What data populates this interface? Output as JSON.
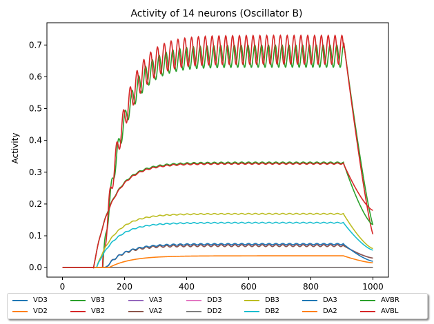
{
  "chart_data": {
    "type": "line",
    "title": "Activity of 14 neurons (Oscillator B)",
    "xlabel": "",
    "ylabel": "Activity",
    "xlim": [
      -50,
      1050
    ],
    "ylim": [
      -0.03,
      0.77
    ],
    "xticks": [
      0,
      200,
      400,
      600,
      800,
      1000
    ],
    "yticks": [
      0.0,
      0.1,
      0.2,
      0.3,
      0.4,
      0.5,
      0.6,
      0.7
    ],
    "ytick_labels": [
      "0.0",
      "0.1",
      "0.2",
      "0.3",
      "0.4",
      "0.5",
      "0.6",
      "0.7"
    ],
    "grid": false,
    "legend_position": "bottom",
    "series": [
      {
        "name": "VD3",
        "color": "#1f77b4",
        "params": {
          "type": "constant",
          "level": 0.0
        }
      },
      {
        "name": "VD2",
        "color": "#ff7f0e",
        "params": {
          "type": "constant",
          "level": 0.0
        }
      },
      {
        "name": "VB3",
        "color": "#2ca02c",
        "params": {
          "type": "osc",
          "start": 130,
          "plateau": 0.665,
          "amp": 0.035,
          "period": 22,
          "tau": 60,
          "drop_plateau": 0.135
        }
      },
      {
        "name": "VB2",
        "color": "#d62728",
        "params": {
          "type": "osc",
          "start": 130,
          "plateau": 0.685,
          "amp": 0.045,
          "period": 22,
          "tau": 60,
          "drop_plateau": 0.105,
          "phase": 0.5
        }
      },
      {
        "name": "VA3",
        "color": "#9467bd",
        "params": {
          "type": "rise",
          "start": 140,
          "plateau": 0.07,
          "tau": 55,
          "end": 0.03,
          "ripple": 0.003
        }
      },
      {
        "name": "VA2",
        "color": "#8c564b",
        "params": {
          "type": "rise",
          "start": 140,
          "plateau": 0.069,
          "tau": 55,
          "end": 0.03,
          "ripple": 0.003
        }
      },
      {
        "name": "DD3",
        "color": "#e377c2",
        "params": {
          "type": "constant",
          "level": 0.0
        }
      },
      {
        "name": "DD2",
        "color": "#7f7f7f",
        "params": {
          "type": "constant",
          "level": 0.0
        }
      },
      {
        "name": "DB3",
        "color": "#bcbd22",
        "params": {
          "type": "rise",
          "start": 110,
          "plateau": 0.169,
          "tau": 60,
          "end": 0.06,
          "ripple": 0.0015
        }
      },
      {
        "name": "DB2",
        "color": "#17becf",
        "params": {
          "type": "rise",
          "start": 110,
          "plateau": 0.141,
          "tau": 60,
          "end": 0.055,
          "ripple": 0.0015
        }
      },
      {
        "name": "DA3",
        "color": "#1f77b4",
        "params": {
          "type": "rise",
          "start": 140,
          "plateau": 0.074,
          "tau": 60,
          "end": 0.02,
          "ripple": 0.002
        }
      },
      {
        "name": "DA2",
        "color": "#ff7f0e",
        "params": {
          "type": "rise",
          "start": 150,
          "plateau": 0.037,
          "tau": 70,
          "end": 0.015,
          "ripple": 0.0
        }
      },
      {
        "name": "AVBR",
        "color": "#2ca02c",
        "params": {
          "type": "rise",
          "start": 100,
          "plateau": 0.33,
          "tau": 60,
          "end": 0.135,
          "ripple": 0.002
        }
      },
      {
        "name": "AVBL",
        "color": "#d62728",
        "params": {
          "type": "rise",
          "start": 100,
          "plateau": 0.327,
          "tau": 60,
          "end": 0.18,
          "ripple": 0.002
        }
      }
    ]
  }
}
